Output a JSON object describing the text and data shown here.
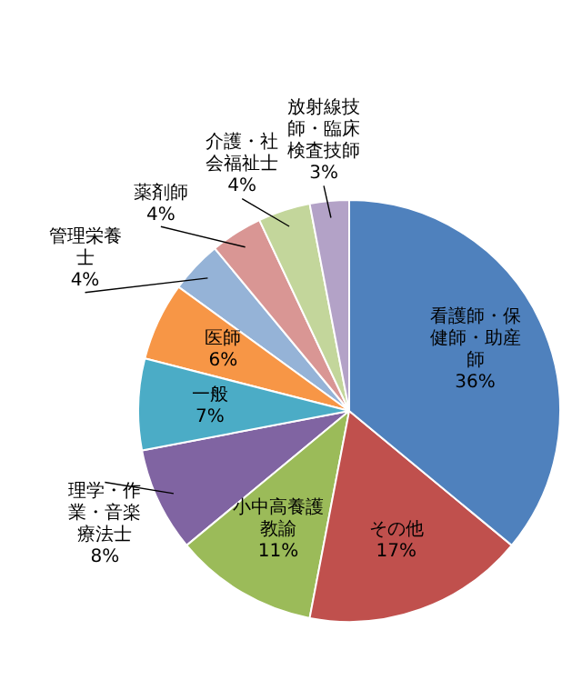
{
  "chart_data": {
    "type": "pie",
    "categories": [
      "看護師・保健師・助産師",
      "その他",
      "小中高養護教諭",
      "理学・作業・音楽療法士",
      "一般",
      "医師",
      "管理栄養士",
      "薬剤師",
      "介護・社会福祉士",
      "放射線技師・臨床検査技師"
    ],
    "values": [
      36,
      17,
      11,
      8,
      7,
      6,
      4,
      4,
      4,
      3
    ],
    "value_labels": [
      "36%",
      "17%",
      "11%",
      "8%",
      "7%",
      "6%",
      "4%",
      "4%",
      "4%",
      "3%"
    ],
    "colors": [
      "#4f81bd",
      "#c0504d",
      "#9bbb59",
      "#8064a2",
      "#4bacc6",
      "#f79646",
      "#95b3d7",
      "#d99694",
      "#c3d69b",
      "#b3a2c7"
    ]
  }
}
